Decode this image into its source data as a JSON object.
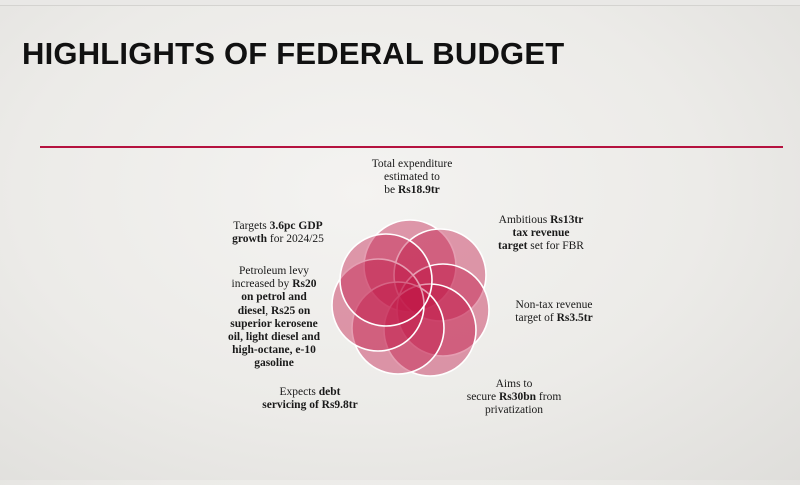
{
  "slide": {
    "title": "HIGHLIGHTS OF FEDERAL BUDGET"
  },
  "colors": {
    "accent": "#b5123f",
    "circle_fill": "#c01748",
    "rule": "#b5123f"
  },
  "diagram": {
    "items": [
      {
        "key": "expenditure",
        "lines": [
          [
            {
              "t": "Total expenditure"
            }
          ],
          [
            {
              "t": "estimated to"
            }
          ],
          [
            {
              "t": "be "
            },
            {
              "t": "Rs18.9tr",
              "b": true
            }
          ]
        ]
      },
      {
        "key": "tax-revenue",
        "lines": [
          [
            {
              "t": "Ambitious "
            },
            {
              "t": "Rs13tr",
              "b": true
            }
          ],
          [
            {
              "t": "tax revenue",
              "b": true
            }
          ],
          [
            {
              "t": "target",
              "b": true
            },
            {
              "t": " set for FBR"
            }
          ]
        ]
      },
      {
        "key": "non-tax-revenue",
        "lines": [
          [
            {
              "t": "Non-tax revenue"
            }
          ],
          [
            {
              "t": "target of "
            },
            {
              "t": "Rs3.5tr",
              "b": true
            }
          ]
        ]
      },
      {
        "key": "privatization",
        "lines": [
          [
            {
              "t": "Aims to"
            }
          ],
          [
            {
              "t": "secure "
            },
            {
              "t": "Rs30bn",
              "b": true
            },
            {
              "t": " from"
            }
          ],
          [
            {
              "t": "privatization"
            }
          ]
        ]
      },
      {
        "key": "debt-servicing",
        "lines": [
          [
            {
              "t": "Expects "
            },
            {
              "t": "debt",
              "b": true
            }
          ],
          [
            {
              "t": "servicing of Rs9.8tr",
              "b": true
            }
          ]
        ]
      },
      {
        "key": "petroleum-levy",
        "lines": [
          [
            {
              "t": "Petroleum levy"
            }
          ],
          [
            {
              "t": "increased by "
            },
            {
              "t": "Rs20",
              "b": true
            }
          ],
          [
            {
              "t": "on petrol and",
              "b": true
            }
          ],
          [
            {
              "t": "diesel",
              "b": true
            },
            {
              "t": ", "
            },
            {
              "t": "Rs25 on",
              "b": true
            }
          ],
          [
            {
              "t": "superior kerosene",
              "b": true
            }
          ],
          [
            {
              "t": "oil, light diesel and",
              "b": true
            }
          ],
          [
            {
              "t": "high-octane, e-10",
              "b": true
            }
          ],
          [
            {
              "t": "gasoline",
              "b": true
            }
          ]
        ]
      },
      {
        "key": "gdp-growth",
        "lines": [
          [
            {
              "t": "Targets "
            },
            {
              "t": "3.6pc GDP",
              "b": true
            }
          ],
          [
            {
              "t": "growth",
              "b": true
            },
            {
              "t": " for 2024/25"
            }
          ]
        ]
      }
    ]
  }
}
